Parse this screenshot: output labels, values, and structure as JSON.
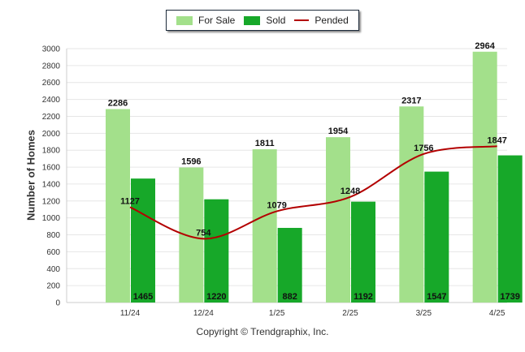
{
  "chart_data": {
    "type": "bar",
    "categories": [
      "11/24",
      "12/24",
      "1/25",
      "2/25",
      "3/25",
      "4/25"
    ],
    "series": [
      {
        "name": "For Sale",
        "kind": "bar",
        "color": "#a3e08b",
        "values": [
          2286,
          1596,
          1811,
          1954,
          2317,
          2964
        ]
      },
      {
        "name": "Sold",
        "kind": "bar",
        "color": "#17a829",
        "values": [
          1465,
          1220,
          882,
          1192,
          1547,
          1739
        ]
      },
      {
        "name": "Pended",
        "kind": "line",
        "color": "#b30000",
        "values": [
          1127,
          754,
          1079,
          1248,
          1756,
          1847
        ]
      }
    ],
    "ylabel": "Number of Homes",
    "xlabel": "",
    "ylim": [
      0,
      3000
    ],
    "yticks": [
      0,
      200,
      400,
      600,
      800,
      1000,
      1200,
      1400,
      1600,
      1800,
      2000,
      2200,
      2400,
      2600,
      2800,
      3000
    ],
    "grid": true,
    "legend_position": "top-center"
  },
  "footer": {
    "copyright": "Copyright © Trendgraphix, Inc."
  }
}
